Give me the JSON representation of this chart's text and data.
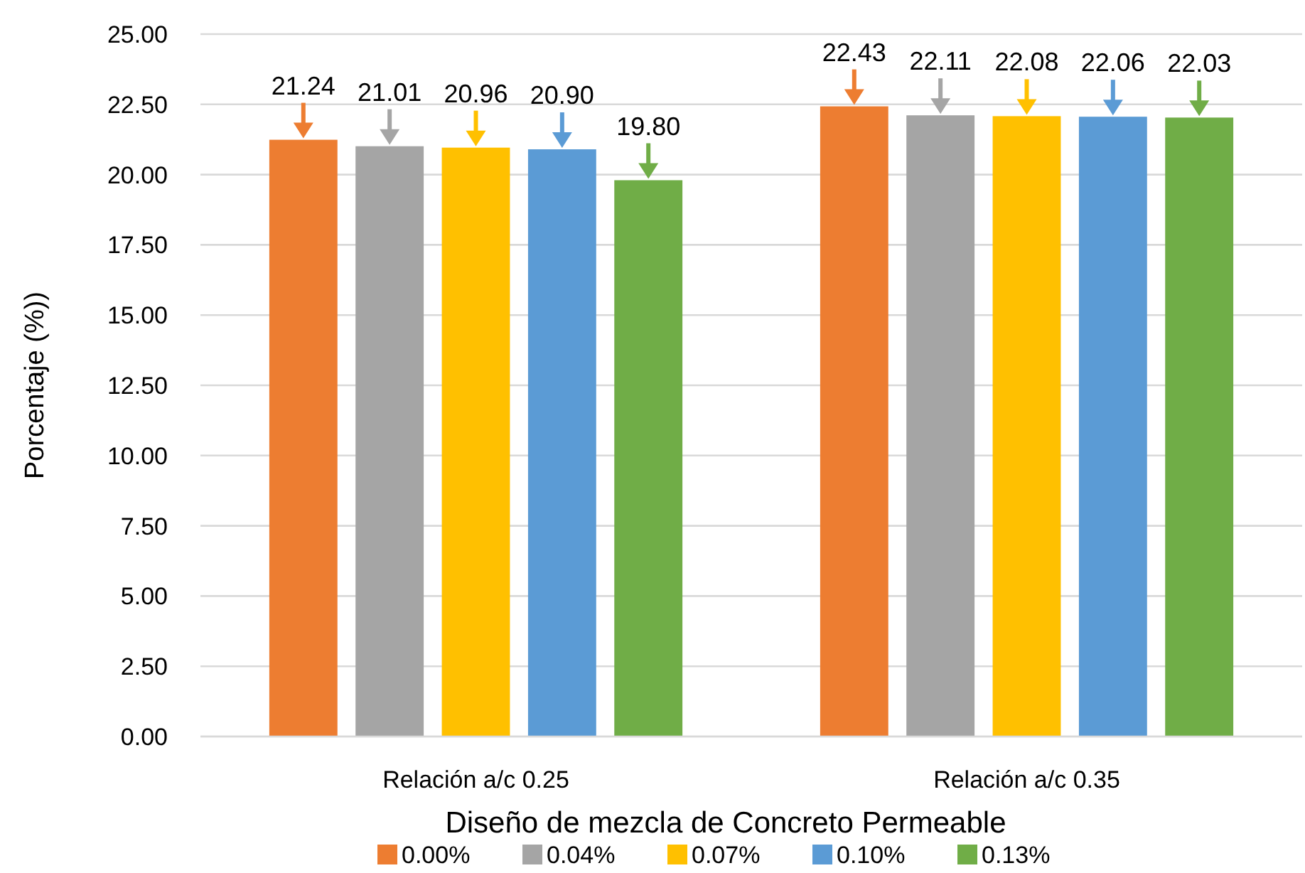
{
  "chart_data": {
    "type": "bar",
    "ylabel": "Porcentaje (%))",
    "xlabel": "Diseño de mezcla de Concreto Permeable",
    "categories": [
      "Relación a/c 0.25",
      "Relación a/c 0.35"
    ],
    "series": [
      {
        "name": "0.00%",
        "color": "#ed7d31",
        "values": [
          21.24,
          22.43
        ],
        "value_labels": [
          "21.24",
          "22.43"
        ]
      },
      {
        "name": "0.04%",
        "color": "#a5a5a5",
        "values": [
          21.01,
          22.11
        ],
        "value_labels": [
          "21.01",
          "22.11"
        ]
      },
      {
        "name": "0.07%",
        "color": "#ffc000",
        "values": [
          20.96,
          22.08
        ],
        "value_labels": [
          "20.96",
          "22.08"
        ]
      },
      {
        "name": "0.10%",
        "color": "#5b9bd5",
        "values": [
          20.9,
          22.06
        ],
        "value_labels": [
          "20.90",
          "22.06"
        ]
      },
      {
        "name": "0.13%",
        "color": "#70ad47",
        "values": [
          19.8,
          22.03
        ],
        "value_labels": [
          "19.80",
          "22.03"
        ]
      }
    ],
    "ylim": [
      0,
      25
    ],
    "yticks": [
      {
        "value": 0,
        "label": "0.00"
      },
      {
        "value": 2.5,
        "label": "2.50"
      },
      {
        "value": 5,
        "label": "5.00"
      },
      {
        "value": 7.5,
        "label": "7.50"
      },
      {
        "value": 10,
        "label": "10.00"
      },
      {
        "value": 12.5,
        "label": "12.50"
      },
      {
        "value": 15,
        "label": "15.00"
      },
      {
        "value": 17.5,
        "label": "17.50"
      },
      {
        "value": 20,
        "label": "20.00"
      },
      {
        "value": 22.5,
        "label": "22.50"
      },
      {
        "value": 25,
        "label": "25.00"
      }
    ],
    "grid": "y",
    "legend": "bottom"
  }
}
